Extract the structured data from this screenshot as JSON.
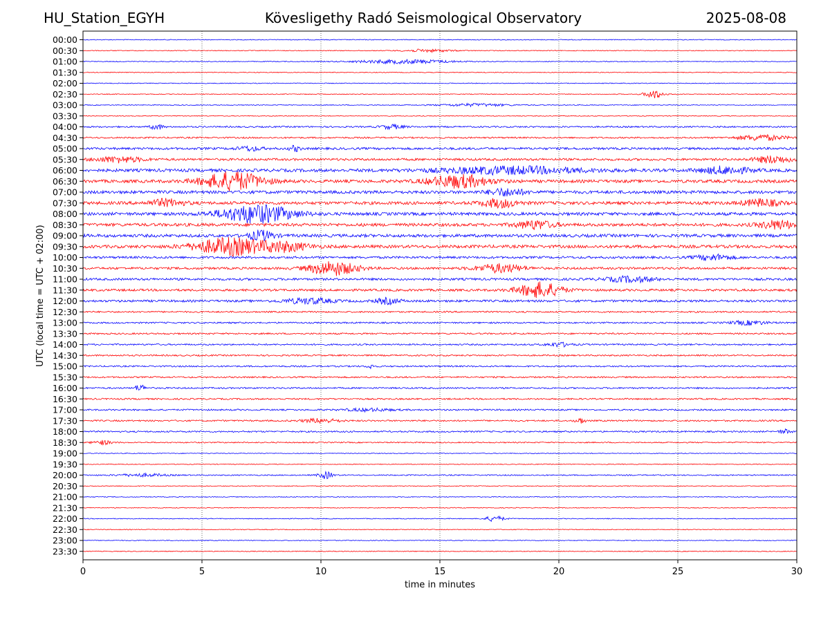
{
  "header": {
    "station": "HU_Station_EGYH",
    "title": "Kövesligethy Radó Seismological Observatory",
    "date": "2025-08-08"
  },
  "chart_data": {
    "type": "line",
    "chart_kind": "helicorder",
    "xlabel": "time in minutes",
    "ylabel": "UTC (local time = UTC + 02:00)",
    "xlim": [
      0,
      30
    ],
    "xticks": [
      0,
      5,
      10,
      15,
      20,
      25,
      30
    ],
    "grid_x": true,
    "colors": [
      "#0000ff",
      "#ff0000"
    ],
    "rows": [
      "00:00",
      "00:30",
      "01:00",
      "01:30",
      "02:00",
      "02:30",
      "03:00",
      "03:30",
      "04:00",
      "04:30",
      "05:00",
      "05:30",
      "06:00",
      "06:30",
      "07:00",
      "07:30",
      "08:00",
      "08:30",
      "09:00",
      "09:30",
      "10:00",
      "10:30",
      "11:00",
      "11:30",
      "12:00",
      "12:30",
      "13:00",
      "13:30",
      "14:00",
      "14:30",
      "15:00",
      "15:30",
      "16:00",
      "16:30",
      "17:00",
      "17:30",
      "18:00",
      "18:30",
      "19:00",
      "19:30",
      "20:00",
      "20:30",
      "21:00",
      "21:30",
      "22:00",
      "22:30",
      "23:00",
      "23:30"
    ],
    "noise_level": [
      1,
      1,
      1,
      1,
      1,
      1,
      1,
      1,
      2,
      2,
      3,
      3,
      4,
      4,
      4,
      4,
      4,
      4,
      4,
      4,
      3,
      3,
      3,
      3,
      3,
      2,
      2,
      2,
      2,
      2,
      2,
      2,
      2,
      2,
      2,
      2,
      2,
      1.5,
      1,
      1,
      1.5,
      1,
      1,
      1,
      1,
      1,
      1,
      1
    ],
    "events": [
      {
        "row": 1,
        "minute": 14.5,
        "dur": 2,
        "amp": 2
      },
      {
        "row": 2,
        "minute": 13.5,
        "dur": 4,
        "amp": 3
      },
      {
        "row": 5,
        "minute": 24.0,
        "dur": 0.8,
        "amp": 6
      },
      {
        "row": 6,
        "minute": 16.5,
        "dur": 3,
        "amp": 2
      },
      {
        "row": 8,
        "minute": 3.1,
        "dur": 0.5,
        "amp": 4
      },
      {
        "row": 8,
        "minute": 13.0,
        "dur": 1,
        "amp": 3
      },
      {
        "row": 9,
        "minute": 28.5,
        "dur": 2,
        "amp": 4
      },
      {
        "row": 10,
        "minute": 7.0,
        "dur": 1,
        "amp": 3
      },
      {
        "row": 10,
        "minute": 8.9,
        "dur": 0.4,
        "amp": 4
      },
      {
        "row": 11,
        "minute": 1.5,
        "dur": 2,
        "amp": 4
      },
      {
        "row": 11,
        "minute": 29.0,
        "dur": 1.5,
        "amp": 5
      },
      {
        "row": 12,
        "minute": 18.0,
        "dur": 6,
        "amp": 5
      },
      {
        "row": 12,
        "minute": 27.0,
        "dur": 2,
        "amp": 5
      },
      {
        "row": 13,
        "minute": 6.3,
        "dur": 2.5,
        "amp": 13
      },
      {
        "row": 13,
        "minute": 15.8,
        "dur": 2.5,
        "amp": 9
      },
      {
        "row": 14,
        "minute": 17.8,
        "dur": 1.5,
        "amp": 5
      },
      {
        "row": 15,
        "minute": 3.5,
        "dur": 1.5,
        "amp": 5
      },
      {
        "row": 15,
        "minute": 17.5,
        "dur": 1.5,
        "amp": 6
      },
      {
        "row": 15,
        "minute": 28.5,
        "dur": 1.5,
        "amp": 5
      },
      {
        "row": 16,
        "minute": 7.3,
        "dur": 3,
        "amp": 13
      },
      {
        "row": 17,
        "minute": 19.0,
        "dur": 1.5,
        "amp": 6
      },
      {
        "row": 17,
        "minute": 29.2,
        "dur": 1.5,
        "amp": 6
      },
      {
        "row": 18,
        "minute": 7.5,
        "dur": 1,
        "amp": 7
      },
      {
        "row": 19,
        "minute": 6.2,
        "dur": 3,
        "amp": 12
      },
      {
        "row": 19,
        "minute": 8.5,
        "dur": 2,
        "amp": 6
      },
      {
        "row": 20,
        "minute": 26.5,
        "dur": 1.5,
        "amp": 4
      },
      {
        "row": 21,
        "minute": 10.5,
        "dur": 2,
        "amp": 10
      },
      {
        "row": 21,
        "minute": 17.5,
        "dur": 2,
        "amp": 6
      },
      {
        "row": 22,
        "minute": 23.0,
        "dur": 2,
        "amp": 4
      },
      {
        "row": 23,
        "minute": 19.2,
        "dur": 1.8,
        "amp": 11
      },
      {
        "row": 24,
        "minute": 9.5,
        "dur": 2,
        "amp": 4
      },
      {
        "row": 24,
        "minute": 12.8,
        "dur": 1,
        "amp": 4
      },
      {
        "row": 26,
        "minute": 28.0,
        "dur": 1.5,
        "amp": 3
      },
      {
        "row": 28,
        "minute": 20.0,
        "dur": 1,
        "amp": 3
      },
      {
        "row": 30,
        "minute": 12.1,
        "dur": 0.3,
        "amp": 3
      },
      {
        "row": 32,
        "minute": 2.4,
        "dur": 0.4,
        "amp": 5
      },
      {
        "row": 34,
        "minute": 12.0,
        "dur": 2,
        "amp": 2
      },
      {
        "row": 35,
        "minute": 10.0,
        "dur": 1.5,
        "amp": 3
      },
      {
        "row": 35,
        "minute": 20.9,
        "dur": 0.4,
        "amp": 4
      },
      {
        "row": 36,
        "minute": 29.5,
        "dur": 0.5,
        "amp": 3
      },
      {
        "row": 37,
        "minute": 0.8,
        "dur": 0.8,
        "amp": 3
      },
      {
        "row": 40,
        "minute": 10.2,
        "dur": 0.6,
        "amp": 5
      },
      {
        "row": 40,
        "minute": 2.5,
        "dur": 2,
        "amp": 2
      },
      {
        "row": 44,
        "minute": 17.3,
        "dur": 0.8,
        "amp": 4
      }
    ]
  }
}
